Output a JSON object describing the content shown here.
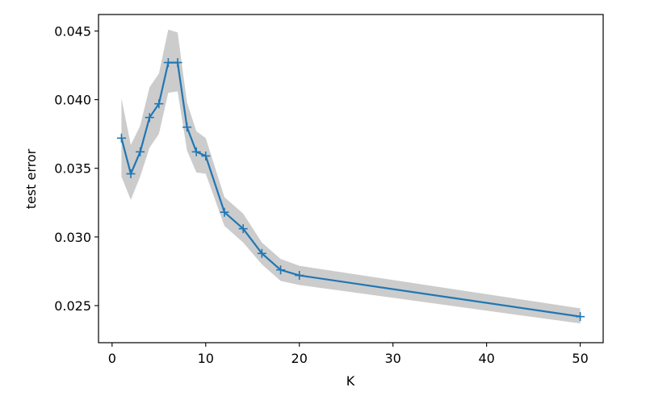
{
  "chart_data": {
    "type": "line",
    "title": "",
    "xlabel": "K",
    "ylabel": "test error",
    "xlim": [
      -1.45,
      52.45
    ],
    "ylim": [
      0.0223,
      0.0462
    ],
    "xticks": [
      0,
      10,
      20,
      30,
      40,
      50
    ],
    "xtick_labels": [
      "0",
      "10",
      "20",
      "30",
      "40",
      "50"
    ],
    "yticks": [
      0.025,
      0.03,
      0.035,
      0.04,
      0.045
    ],
    "ytick_labels": [
      "0.025",
      "0.030",
      "0.035",
      "0.040",
      "0.045"
    ],
    "grid": false,
    "series": [
      {
        "x": [
          1,
          2,
          3,
          4,
          5,
          6,
          7,
          8,
          9,
          10,
          12,
          14,
          16,
          18,
          20,
          50
        ],
        "y": [
          0.0372,
          0.0346,
          0.0362,
          0.0387,
          0.0397,
          0.0427,
          0.0427,
          0.038,
          0.0362,
          0.0359,
          0.0318,
          0.0306,
          0.0288,
          0.0276,
          0.0272,
          0.0242
        ],
        "lower": [
          0.0344,
          0.0327,
          0.0344,
          0.0365,
          0.0375,
          0.0405,
          0.0406,
          0.0363,
          0.0347,
          0.0346,
          0.0308,
          0.0296,
          0.028,
          0.0268,
          0.0265,
          0.0237
        ],
        "upper": [
          0.0401,
          0.0367,
          0.0381,
          0.0409,
          0.0419,
          0.0451,
          0.0449,
          0.0398,
          0.0377,
          0.0372,
          0.0329,
          0.0317,
          0.0296,
          0.0284,
          0.0279,
          0.0248
        ],
        "color": "#1f77b4",
        "band_color": "#cccccc",
        "marker": "+"
      }
    ]
  }
}
